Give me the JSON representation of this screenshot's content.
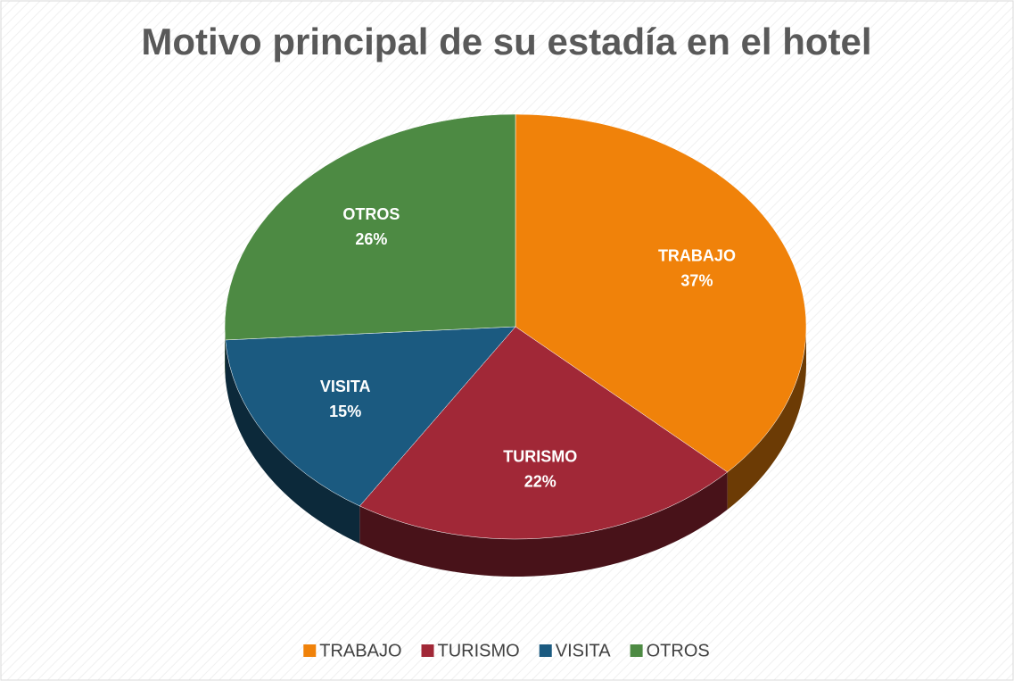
{
  "chart_data": {
    "type": "pie",
    "title": "Motivo principal de su estadía en el hotel",
    "categories": [
      "TRABAJO",
      "TURISMO",
      "VISITA",
      "OTROS"
    ],
    "values": [
      37,
      22,
      15,
      26
    ],
    "value_labels": [
      "37%",
      "22%",
      "15%",
      "26%"
    ],
    "colors": [
      "#f0820a",
      "#a12837",
      "#1b5a80",
      "#4d8a43"
    ],
    "legend": "bottom"
  }
}
